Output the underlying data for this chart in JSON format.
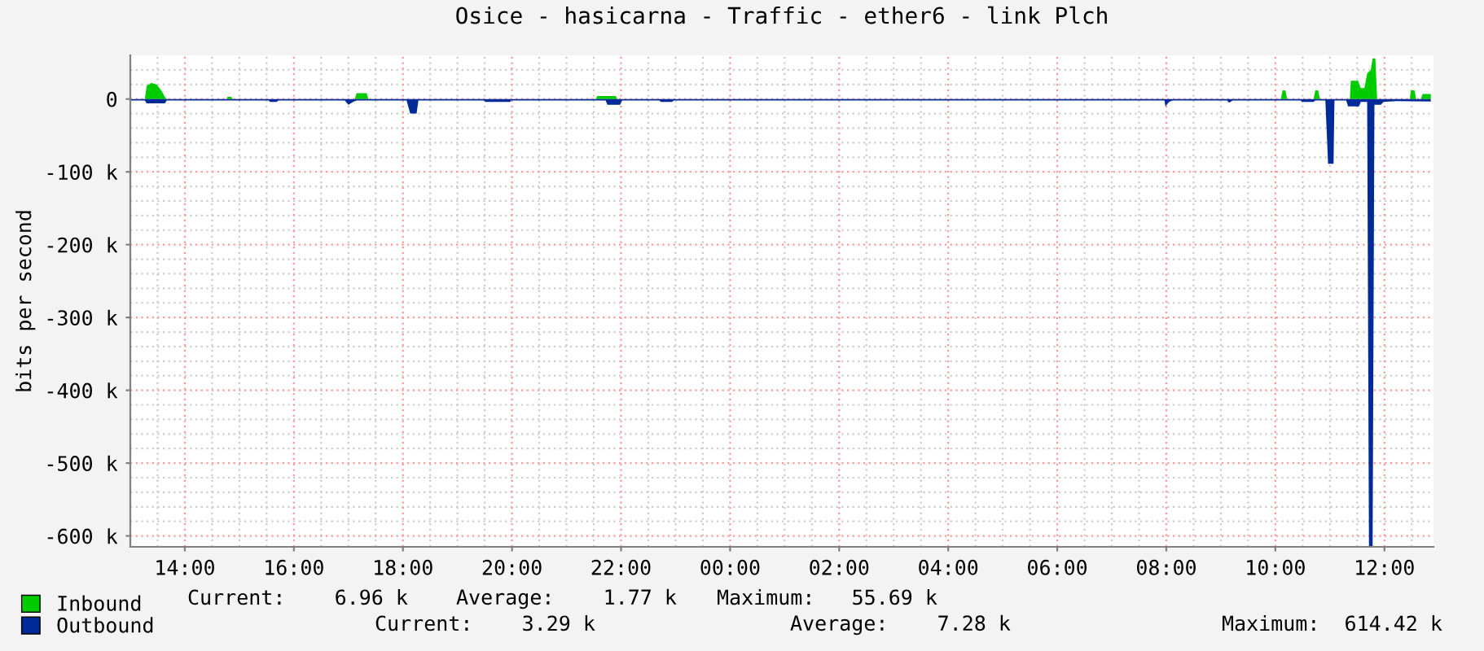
{
  "chart_data": {
    "type": "area",
    "title": "Osice - hasicarna - Traffic - ether6 - link Plch",
    "ylabel": "bits per second",
    "xlim": [
      "2000-01-01T13:00",
      "2000-01-02T12:54"
    ],
    "xticks": [
      {
        "value": "2000-01-01T14:00",
        "label": "14:00"
      },
      {
        "value": "2000-01-01T16:00",
        "label": "16:00"
      },
      {
        "value": "2000-01-01T18:00",
        "label": "18:00"
      },
      {
        "value": "2000-01-01T20:00",
        "label": "20:00"
      },
      {
        "value": "2000-01-01T22:00",
        "label": "22:00"
      },
      {
        "value": "2000-01-02T00:00",
        "label": "00:00"
      },
      {
        "value": "2000-01-02T02:00",
        "label": "02:00"
      },
      {
        "value": "2000-01-02T04:00",
        "label": "04:00"
      },
      {
        "value": "2000-01-02T06:00",
        "label": "06:00"
      },
      {
        "value": "2000-01-02T08:00",
        "label": "08:00"
      },
      {
        "value": "2000-01-02T10:00",
        "label": "10:00"
      },
      {
        "value": "2000-01-02T12:00",
        "label": "12:00"
      }
    ],
    "ylim": [
      -615,
      60
    ],
    "yticks": [
      {
        "value": -600,
        "label": "-600 k"
      },
      {
        "value": -500,
        "label": "-500 k"
      },
      {
        "value": -400,
        "label": "-400 k"
      },
      {
        "value": -300,
        "label": "-300 k"
      },
      {
        "value": -200,
        "label": "-200 k"
      },
      {
        "value": -100,
        "label": "-100 k"
      },
      0
    ],
    "grid": true,
    "legend": "bottom",
    "series": [
      {
        "name": "Inbound",
        "color": "#00cc00",
        "x": [
          "2000-01-01T13:00",
          "2000-01-01T13:16",
          "2000-01-01T13:18",
          "2000-01-01T13:23",
          "2000-01-01T13:29",
          "2000-01-01T13:34",
          "2000-01-01T13:38",
          "2000-01-01T13:40",
          "2000-01-01T14:46",
          "2000-01-01T14:47",
          "2000-01-01T14:51",
          "2000-01-01T14:53",
          "2000-01-01T17:07",
          "2000-01-01T17:09",
          "2000-01-01T17:20",
          "2000-01-01T17:22",
          "2000-01-01T21:32",
          "2000-01-01T21:34",
          "2000-01-01T21:54",
          "2000-01-01T21:56",
          "2000-01-02T10:06",
          "2000-01-02T10:08",
          "2000-01-02T10:11",
          "2000-01-02T10:13",
          "2000-01-02T10:42",
          "2000-01-02T10:44",
          "2000-01-02T10:47",
          "2000-01-02T10:49",
          "2000-01-02T11:22",
          "2000-01-02T11:23",
          "2000-01-02T11:31",
          "2000-01-02T11:34",
          "2000-01-02T11:38",
          "2000-01-02T11:41",
          "2000-01-02T11:45",
          "2000-01-02T11:47",
          "2000-01-02T11:50",
          "2000-01-02T11:52",
          "2000-01-02T12:28",
          "2000-01-02T12:29",
          "2000-01-02T12:33",
          "2000-01-02T12:35",
          "2000-01-02T12:40",
          "2000-01-02T12:42",
          "2000-01-02T12:51"
        ],
        "values": [
          0,
          0,
          18,
          22,
          20,
          12,
          3,
          0,
          0,
          3,
          3,
          0,
          0,
          8,
          8,
          0,
          0,
          4,
          4,
          0,
          0,
          12,
          12,
          0,
          0,
          12,
          12,
          0,
          0,
          25,
          25,
          15,
          15,
          35,
          40,
          55.69,
          55.69,
          0,
          0,
          12,
          12,
          0,
          0,
          6.96,
          6.96
        ]
      },
      {
        "name": "Outbound",
        "color": "#002a97",
        "x": [
          "2000-01-01T13:00",
          "2000-01-01T13:16",
          "2000-01-01T13:18",
          "2000-01-01T13:38",
          "2000-01-01T13:40",
          "2000-01-01T15:32",
          "2000-01-01T15:34",
          "2000-01-01T15:41",
          "2000-01-01T15:43",
          "2000-01-01T16:56",
          "2000-01-01T17:00",
          "2000-01-01T17:05",
          "2000-01-01T17:09",
          "2000-01-01T18:04",
          "2000-01-01T18:08",
          "2000-01-01T18:15",
          "2000-01-01T18:17",
          "2000-01-01T19:29",
          "2000-01-01T19:31",
          "2000-01-01T19:58",
          "2000-01-01T19:59",
          "2000-01-01T21:43",
          "2000-01-01T21:45",
          "2000-01-01T21:59",
          "2000-01-01T22:01",
          "2000-01-01T22:42",
          "2000-01-01T22:44",
          "2000-01-01T22:56",
          "2000-01-01T22:58",
          "2000-01-02T07:58",
          "2000-01-02T07:59",
          "2000-01-02T08:03",
          "2000-01-02T08:07",
          "2000-01-02T09:07",
          "2000-01-02T09:09",
          "2000-01-02T09:13",
          "2000-01-02T10:28",
          "2000-01-02T10:29",
          "2000-01-02T10:42",
          "2000-01-02T10:44",
          "2000-01-02T10:55",
          "2000-01-02T10:58",
          "2000-01-02T11:04",
          "2000-01-02T11:05",
          "2000-01-02T11:18",
          "2000-01-02T11:20",
          "2000-01-02T11:32",
          "2000-01-02T11:34",
          "2000-01-02T11:41",
          "2000-01-02T11:43",
          "2000-01-02T11:47",
          "2000-01-02T11:49",
          "2000-01-02T11:56",
          "2000-01-02T11:59",
          "2000-01-02T12:13",
          "2000-01-02T12:51"
        ],
        "values": [
          -2,
          -2,
          -6,
          -6,
          -2,
          -2,
          -4,
          -4,
          -2,
          -2,
          -8,
          -4,
          -2,
          -2,
          -20,
          -20,
          -2,
          -2,
          -4,
          -4,
          -2,
          -2,
          -8,
          -8,
          -2,
          -2,
          -4,
          -4,
          -2,
          -2,
          -10,
          -4,
          -2,
          -2,
          -5,
          -2,
          -2,
          -4,
          -4,
          -2,
          -2,
          -89,
          -89,
          -2,
          -2,
          -10,
          -10,
          -4,
          -4,
          -614.42,
          -614.42,
          -8,
          -8,
          -4,
          -3,
          -3.29
        ]
      }
    ],
    "annotations": [
      "Current:    6.96 k",
      "Average:    1.77 k",
      "Maximum:   55.69 k",
      "Current:    3.29 k",
      "Average:    7.28 k",
      "Maximum:  614.42 k"
    ]
  }
}
